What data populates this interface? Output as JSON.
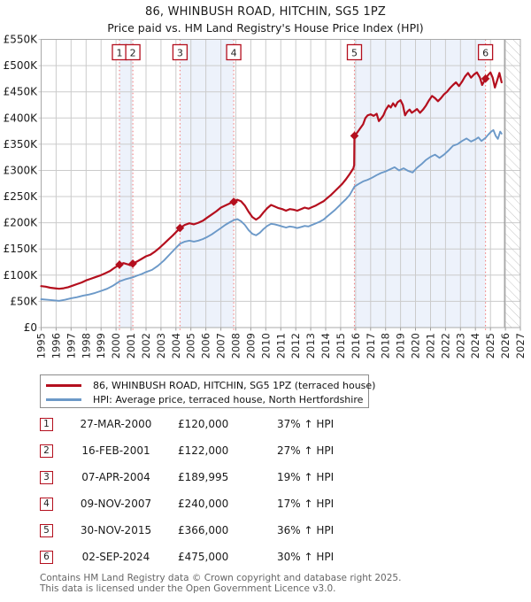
{
  "header": {
    "title": "86, WHINBUSH ROAD, HITCHIN, SG5 1PZ",
    "subtitle": "Price paid vs. HM Land Registry's House Price Index (HPI)"
  },
  "legend": {
    "items": [
      {
        "label": "86, WHINBUSH ROAD, HITCHIN, SG5 1PZ (terraced house)",
        "color": "#b40f1e"
      },
      {
        "label": "HPI: Average price, terraced house, North Hertfordshire",
        "color": "#6c99c8"
      }
    ]
  },
  "transactions": [
    {
      "num": "1",
      "date": "27-MAR-2000",
      "price": "£120,000",
      "hpi_change": "37% ↑ HPI",
      "year": 2000.23,
      "price_k": 120
    },
    {
      "num": "2",
      "date": "16-FEB-2001",
      "price": "£122,000",
      "hpi_change": "27% ↑ HPI",
      "year": 2001.12,
      "price_k": 122
    },
    {
      "num": "3",
      "date": "07-APR-2004",
      "price": "£189,995",
      "hpi_change": "19% ↑ HPI",
      "year": 2004.27,
      "price_k": 190
    },
    {
      "num": "4",
      "date": "09-NOV-2007",
      "price": "£240,000",
      "hpi_change": "17% ↑ HPI",
      "year": 2007.86,
      "price_k": 240
    },
    {
      "num": "5",
      "date": "30-NOV-2015",
      "price": "£366,000",
      "hpi_change": "36% ↑ HPI",
      "year": 2015.92,
      "price_k": 366
    },
    {
      "num": "6",
      "date": "02-SEP-2024",
      "price": "£475,000",
      "hpi_change": "30% ↑ HPI",
      "year": 2024.67,
      "price_k": 475
    }
  ],
  "footer": {
    "line1": "Contains HM Land Registry data © Crown copyright and database right 2025.",
    "line2": "This data is licensed under the Open Government Licence v3.0."
  },
  "chart_data": {
    "type": "line",
    "title": "86, WHINBUSH ROAD, HITCHIN, SG5 1PZ",
    "subtitle": "Price paid vs. HM Land Registry's House Price Index (HPI)",
    "xlim": [
      1995,
      2027
    ],
    "ylim": [
      0,
      550
    ],
    "y_unit": "GBP thousands",
    "x_ticks": [
      1995,
      1996,
      1997,
      1998,
      1999,
      2000,
      2001,
      2002,
      2003,
      2004,
      2005,
      2006,
      2007,
      2008,
      2009,
      2010,
      2011,
      2012,
      2013,
      2014,
      2015,
      2016,
      2017,
      2018,
      2019,
      2020,
      2021,
      2022,
      2023,
      2024,
      2025,
      2026,
      2027
    ],
    "y_ticks": [
      {
        "value": 0,
        "label": "£0"
      },
      {
        "value": 50,
        "label": "£50K"
      },
      {
        "value": 100,
        "label": "£100K"
      },
      {
        "value": 150,
        "label": "£150K"
      },
      {
        "value": 200,
        "label": "£200K"
      },
      {
        "value": 250,
        "label": "£250K"
      },
      {
        "value": 300,
        "label": "£300K"
      },
      {
        "value": 350,
        "label": "£350K"
      },
      {
        "value": 400,
        "label": "£400K"
      },
      {
        "value": 450,
        "label": "£450K"
      },
      {
        "value": 500,
        "label": "£500K"
      },
      {
        "value": 550,
        "label": "£550K"
      }
    ],
    "grid": true,
    "legend_position": "below",
    "colors": {
      "red": "#b40f1e",
      "blue": "#6c99c8",
      "band": "#edf2fb",
      "grid": "#cbcbcb",
      "border": "#a9a9a9",
      "dashed": "#f28080",
      "hatch": "#c4c4c4",
      "hatch_edge": "#8a8a8a",
      "text": "#1a1a1a"
    },
    "ownership_bands": [
      [
        2000.23,
        2001.12
      ],
      [
        2004.27,
        2007.86
      ],
      [
        2015.92,
        2024.67
      ]
    ],
    "future_hatch": [
      2025.94,
      2027
    ],
    "sale_markers": [
      {
        "label": "1",
        "year": 2000.23,
        "value_k": 120
      },
      {
        "label": "2",
        "year": 2001.12,
        "value_k": 122
      },
      {
        "label": "3",
        "year": 2004.27,
        "value_k": 190
      },
      {
        "label": "4",
        "year": 2007.86,
        "value_k": 240
      },
      {
        "label": "5",
        "year": 2015.92,
        "value_k": 366
      },
      {
        "label": "6",
        "year": 2024.67,
        "value_k": 475
      }
    ],
    "series": [
      {
        "name": "86, WHINBUSH ROAD, HITCHIN, SG5 1PZ (terraced house)",
        "color": "#b40f1e",
        "points": [
          [
            1995.0,
            79
          ],
          [
            1995.3,
            78
          ],
          [
            1995.6,
            76
          ],
          [
            1995.9,
            75
          ],
          [
            1996.2,
            74
          ],
          [
            1996.5,
            75
          ],
          [
            1996.8,
            77
          ],
          [
            1997.1,
            80
          ],
          [
            1997.4,
            83
          ],
          [
            1997.7,
            86
          ],
          [
            1998.0,
            90
          ],
          [
            1998.3,
            93
          ],
          [
            1998.6,
            96
          ],
          [
            1999.0,
            100
          ],
          [
            1999.3,
            104
          ],
          [
            1999.6,
            108
          ],
          [
            1999.9,
            114
          ],
          [
            2000.23,
            120
          ],
          [
            2000.5,
            123
          ],
          [
            2000.75,
            121
          ],
          [
            2000.95,
            119
          ],
          [
            2001.12,
            122
          ],
          [
            2001.4,
            126
          ],
          [
            2001.7,
            131
          ],
          [
            2002.0,
            136
          ],
          [
            2002.3,
            139
          ],
          [
            2002.6,
            145
          ],
          [
            2002.9,
            152
          ],
          [
            2003.2,
            160
          ],
          [
            2003.5,
            168
          ],
          [
            2003.8,
            176
          ],
          [
            2004.0,
            182
          ],
          [
            2004.27,
            190
          ],
          [
            2004.6,
            196
          ],
          [
            2004.9,
            199
          ],
          [
            2005.2,
            197
          ],
          [
            2005.5,
            200
          ],
          [
            2005.8,
            204
          ],
          [
            2006.1,
            210
          ],
          [
            2006.4,
            216
          ],
          [
            2006.7,
            222
          ],
          [
            2007.0,
            229
          ],
          [
            2007.3,
            233
          ],
          [
            2007.6,
            237
          ],
          [
            2007.86,
            240
          ],
          [
            2008.1,
            244
          ],
          [
            2008.35,
            241
          ],
          [
            2008.6,
            233
          ],
          [
            2008.85,
            221
          ],
          [
            2009.1,
            211
          ],
          [
            2009.35,
            206
          ],
          [
            2009.6,
            211
          ],
          [
            2009.85,
            220
          ],
          [
            2010.1,
            228
          ],
          [
            2010.35,
            234
          ],
          [
            2010.6,
            231
          ],
          [
            2010.85,
            228
          ],
          [
            2011.1,
            226
          ],
          [
            2011.35,
            223
          ],
          [
            2011.6,
            226
          ],
          [
            2011.85,
            225
          ],
          [
            2012.1,
            223
          ],
          [
            2012.35,
            226
          ],
          [
            2012.6,
            229
          ],
          [
            2012.85,
            227
          ],
          [
            2013.1,
            230
          ],
          [
            2013.35,
            233
          ],
          [
            2013.6,
            237
          ],
          [
            2013.85,
            241
          ],
          [
            2014.1,
            247
          ],
          [
            2014.35,
            253
          ],
          [
            2014.6,
            260
          ],
          [
            2014.85,
            267
          ],
          [
            2015.1,
            274
          ],
          [
            2015.35,
            283
          ],
          [
            2015.6,
            293
          ],
          [
            2015.85,
            304
          ],
          [
            2015.9,
            310
          ],
          [
            2015.92,
            366
          ],
          [
            2016.1,
            372
          ],
          [
            2016.3,
            380
          ],
          [
            2016.5,
            388
          ],
          [
            2016.65,
            400
          ],
          [
            2016.8,
            405
          ],
          [
            2017.0,
            407
          ],
          [
            2017.2,
            404
          ],
          [
            2017.4,
            408
          ],
          [
            2017.55,
            394
          ],
          [
            2017.7,
            399
          ],
          [
            2017.85,
            405
          ],
          [
            2018.0,
            415
          ],
          [
            2018.2,
            424
          ],
          [
            2018.35,
            420
          ],
          [
            2018.5,
            428
          ],
          [
            2018.65,
            422
          ],
          [
            2018.8,
            430
          ],
          [
            2019.0,
            434
          ],
          [
            2019.15,
            425
          ],
          [
            2019.3,
            405
          ],
          [
            2019.45,
            412
          ],
          [
            2019.6,
            416
          ],
          [
            2019.75,
            410
          ],
          [
            2019.9,
            413
          ],
          [
            2020.1,
            417
          ],
          [
            2020.3,
            410
          ],
          [
            2020.5,
            416
          ],
          [
            2020.7,
            424
          ],
          [
            2020.9,
            434
          ],
          [
            2021.1,
            442
          ],
          [
            2021.3,
            438
          ],
          [
            2021.5,
            432
          ],
          [
            2021.7,
            438
          ],
          [
            2021.9,
            445
          ],
          [
            2022.1,
            450
          ],
          [
            2022.3,
            457
          ],
          [
            2022.5,
            463
          ],
          [
            2022.7,
            468
          ],
          [
            2022.9,
            461
          ],
          [
            2023.1,
            469
          ],
          [
            2023.3,
            479
          ],
          [
            2023.5,
            486
          ],
          [
            2023.7,
            477
          ],
          [
            2023.9,
            483
          ],
          [
            2024.1,
            487
          ],
          [
            2024.3,
            477
          ],
          [
            2024.45,
            463
          ],
          [
            2024.67,
            475
          ],
          [
            2024.85,
            482
          ],
          [
            2025.0,
            487
          ],
          [
            2025.15,
            477
          ],
          [
            2025.3,
            458
          ],
          [
            2025.45,
            472
          ],
          [
            2025.6,
            486
          ],
          [
            2025.75,
            468
          ]
        ]
      },
      {
        "name": "HPI: Average price, terraced house, North Hertfordshire",
        "color": "#6c99c8",
        "points": [
          [
            1995.0,
            54
          ],
          [
            1995.4,
            53
          ],
          [
            1995.8,
            52
          ],
          [
            1996.2,
            51
          ],
          [
            1996.6,
            53
          ],
          [
            1997.0,
            56
          ],
          [
            1997.4,
            58
          ],
          [
            1997.8,
            61
          ],
          [
            1998.2,
            63
          ],
          [
            1998.6,
            66
          ],
          [
            1999.0,
            70
          ],
          [
            1999.4,
            74
          ],
          [
            1999.8,
            80
          ],
          [
            2000.23,
            88
          ],
          [
            2000.6,
            92
          ],
          [
            2001.0,
            95
          ],
          [
            2001.12,
            96
          ],
          [
            2001.4,
            99
          ],
          [
            2001.7,
            102
          ],
          [
            2002.0,
            106
          ],
          [
            2002.4,
            110
          ],
          [
            2002.8,
            118
          ],
          [
            2003.2,
            128
          ],
          [
            2003.6,
            140
          ],
          [
            2004.0,
            152
          ],
          [
            2004.27,
            160
          ],
          [
            2004.6,
            164
          ],
          [
            2004.9,
            166
          ],
          [
            2005.2,
            164
          ],
          [
            2005.5,
            166
          ],
          [
            2005.8,
            169
          ],
          [
            2006.1,
            173
          ],
          [
            2006.4,
            178
          ],
          [
            2006.7,
            184
          ],
          [
            2007.0,
            190
          ],
          [
            2007.3,
            196
          ],
          [
            2007.6,
            201
          ],
          [
            2007.86,
            205
          ],
          [
            2008.1,
            207
          ],
          [
            2008.35,
            203
          ],
          [
            2008.6,
            196
          ],
          [
            2008.85,
            186
          ],
          [
            2009.1,
            179
          ],
          [
            2009.35,
            176
          ],
          [
            2009.6,
            181
          ],
          [
            2009.85,
            188
          ],
          [
            2010.1,
            194
          ],
          [
            2010.35,
            198
          ],
          [
            2010.6,
            197
          ],
          [
            2010.85,
            195
          ],
          [
            2011.1,
            193
          ],
          [
            2011.35,
            191
          ],
          [
            2011.6,
            193
          ],
          [
            2011.85,
            192
          ],
          [
            2012.1,
            190
          ],
          [
            2012.35,
            192
          ],
          [
            2012.6,
            194
          ],
          [
            2012.85,
            193
          ],
          [
            2013.1,
            196
          ],
          [
            2013.35,
            199
          ],
          [
            2013.6,
            202
          ],
          [
            2013.85,
            206
          ],
          [
            2014.1,
            212
          ],
          [
            2014.35,
            218
          ],
          [
            2014.6,
            224
          ],
          [
            2014.85,
            231
          ],
          [
            2015.1,
            238
          ],
          [
            2015.35,
            245
          ],
          [
            2015.6,
            253
          ],
          [
            2015.92,
            269
          ],
          [
            2016.2,
            274
          ],
          [
            2016.5,
            279
          ],
          [
            2016.8,
            282
          ],
          [
            2017.1,
            286
          ],
          [
            2017.4,
            291
          ],
          [
            2017.7,
            295
          ],
          [
            2018.0,
            298
          ],
          [
            2018.3,
            302
          ],
          [
            2018.6,
            306
          ],
          [
            2018.9,
            300
          ],
          [
            2019.2,
            304
          ],
          [
            2019.5,
            299
          ],
          [
            2019.8,
            296
          ],
          [
            2020.1,
            305
          ],
          [
            2020.4,
            312
          ],
          [
            2020.7,
            320
          ],
          [
            2021.0,
            326
          ],
          [
            2021.3,
            330
          ],
          [
            2021.6,
            324
          ],
          [
            2021.9,
            330
          ],
          [
            2022.2,
            338
          ],
          [
            2022.5,
            347
          ],
          [
            2022.8,
            350
          ],
          [
            2023.1,
            356
          ],
          [
            2023.4,
            361
          ],
          [
            2023.7,
            355
          ],
          [
            2024.0,
            359
          ],
          [
            2024.2,
            363
          ],
          [
            2024.4,
            356
          ],
          [
            2024.67,
            362
          ],
          [
            2024.85,
            368
          ],
          [
            2025.05,
            374
          ],
          [
            2025.2,
            377
          ],
          [
            2025.35,
            366
          ],
          [
            2025.5,
            360
          ],
          [
            2025.65,
            374
          ],
          [
            2025.75,
            370
          ]
        ]
      }
    ]
  }
}
